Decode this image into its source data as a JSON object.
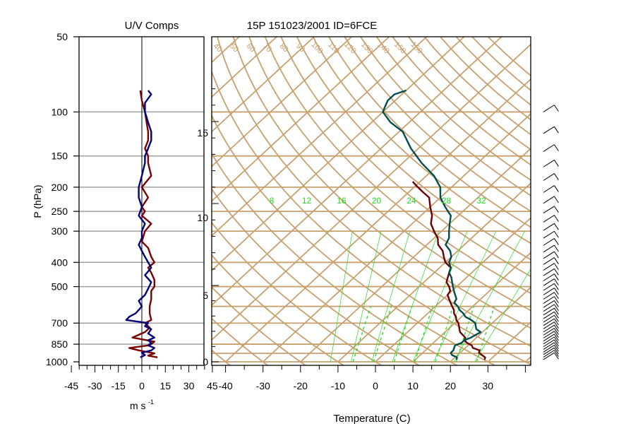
{
  "chart_data": [
    {
      "type": "line",
      "title": "U/V Comps",
      "xlabel": "m s",
      "xlabel_exponent": "-1",
      "ylabel": "P (hPa)",
      "y_log_scale": true,
      "ylim": [
        1000,
        50
      ],
      "xlim": [
        -54,
        54
      ],
      "y_ticks": [
        "50",
        "100",
        "150",
        "200",
        "250",
        "300",
        "400",
        "500",
        "700",
        "850",
        "1000"
      ],
      "x_ticks": [
        "-45",
        "-30",
        "-15",
        "0",
        "15",
        "30",
        "45"
      ],
      "grid": "horizontal lines at pressure ticks",
      "colors": {
        "u": "#7a0000",
        "v": "#00007a",
        "grid": "#a0a0a0"
      },
      "series": [
        {
          "color_key": "u",
          "pressure": [
            960,
            945,
            925,
            900,
            880,
            860,
            850,
            830,
            800,
            760,
            730,
            700,
            680,
            640,
            600,
            560,
            520,
            500,
            470,
            440,
            420,
            400,
            380,
            350,
            330,
            300,
            280,
            260,
            250,
            240,
            220,
            200,
            180,
            160,
            150,
            140,
            130,
            120,
            110,
            100,
            90,
            82
          ],
          "values": [
            10,
            4,
            8,
            -2,
            -8,
            4,
            6,
            8,
            -6,
            2,
            5,
            2,
            6,
            5,
            5,
            6,
            6,
            8,
            8,
            6,
            4,
            8,
            6,
            4,
            0,
            2,
            6,
            0,
            2,
            0,
            4,
            0,
            6,
            4,
            4,
            2,
            4,
            4,
            3,
            2,
            0,
            -1
          ]
        },
        {
          "color_key": "v",
          "pressure": [
            960,
            940,
            920,
            900,
            880,
            860,
            840,
            820,
            800,
            770,
            740,
            720,
            700,
            680,
            660,
            640,
            620,
            600,
            570,
            540,
            510,
            480,
            450,
            420,
            400,
            380,
            360,
            340,
            320,
            300,
            280,
            260,
            240,
            220,
            200,
            180,
            160,
            150,
            140,
            130,
            120,
            110,
            100,
            92,
            85,
            82
          ],
          "values": [
            -1,
            2,
            0,
            6,
            8,
            4,
            6,
            4,
            8,
            4,
            6,
            2,
            4,
            -10,
            -8,
            -4,
            -2,
            0,
            -2,
            2,
            4,
            6,
            2,
            6,
            4,
            2,
            0,
            -2,
            0,
            0,
            2,
            -2,
            0,
            -2,
            -2,
            0,
            2,
            2,
            4,
            6,
            6,
            4,
            2,
            2,
            6,
            4
          ]
        }
      ]
    },
    {
      "type": "line",
      "title": "15P 151023/2001 ID=6FCE",
      "xlabel": "Temperature (C)",
      "x_ticks": [
        "-40",
        "-30",
        "-20",
        "-10",
        "0",
        "10",
        "20",
        "30"
      ],
      "xlim": [
        -43,
        42
      ],
      "y_log_scale": true,
      "ylim": [
        1000,
        50
      ],
      "height_ticks_km": [
        "0",
        "5",
        "10",
        "15"
      ],
      "isotherm_labels": [
        "40",
        "50",
        "60",
        "70",
        "80",
        "90",
        "100",
        "110",
        "120",
        "130",
        "140",
        "150",
        "160"
      ],
      "mixing_ratio_labels": [
        "8",
        "12",
        "16",
        "20",
        "24",
        "28",
        "32"
      ],
      "colors": {
        "background_lines": "#c8a06e",
        "temperature": "#6b0000",
        "dewpoint": "#004d4d",
        "mixing_ratio": "#22dd22"
      },
      "series": [
        {
          "color_key": "temperature",
          "pressure": [
            980,
            960,
            940,
            920,
            900,
            880,
            860,
            840,
            820,
            800,
            780,
            760,
            740,
            720,
            700,
            680,
            660,
            640,
            620,
            600,
            580,
            560,
            540,
            520,
            500,
            480,
            460,
            440,
            420,
            400,
            380,
            360,
            340,
            320,
            300,
            280,
            260,
            240,
            220,
            210,
            200,
            190
          ],
          "values": [
            28.5,
            28,
            26.5,
            25,
            24.5,
            22,
            21,
            19,
            17.5,
            17,
            15.5,
            14,
            13,
            12,
            11,
            9.5,
            8.5,
            7,
            6,
            4.5,
            3,
            1.5,
            0,
            -0.5,
            -2,
            -4,
            -5,
            -6,
            -7,
            -10,
            -12,
            -14,
            -17,
            -19,
            -22,
            -25,
            -27,
            -30,
            -33,
            -36,
            -39,
            -42
          ]
        },
        {
          "color_key": "dewpoint",
          "pressure": [
            980,
            960,
            940,
            920,
            900,
            880,
            860,
            840,
            820,
            800,
            780,
            760,
            740,
            720,
            700,
            680,
            660,
            640,
            620,
            600,
            580,
            560,
            540,
            520,
            500,
            480,
            460,
            440,
            420,
            400,
            380,
            360,
            340,
            320,
            300,
            280,
            260,
            240,
            220,
            200,
            180,
            160,
            140,
            120,
            110,
            100,
            95,
            90,
            85,
            82
          ],
          "values": [
            21,
            20.5,
            18.5,
            17.5,
            17.5,
            17,
            16.5,
            17.5,
            17.5,
            18.5,
            19,
            19.5,
            17.5,
            16.5,
            15.5,
            13.5,
            11,
            9.5,
            7.5,
            6,
            4,
            3.5,
            2,
            0.5,
            -1,
            -2.5,
            -4,
            -6,
            -7,
            -9,
            -10,
            -12,
            -15,
            -16,
            -18,
            -20,
            -22,
            -26,
            -30,
            -33,
            -38,
            -45,
            -52,
            -59,
            -65,
            -70,
            -71,
            -72,
            -72,
            -70
          ]
        }
      ]
    }
  ]
}
